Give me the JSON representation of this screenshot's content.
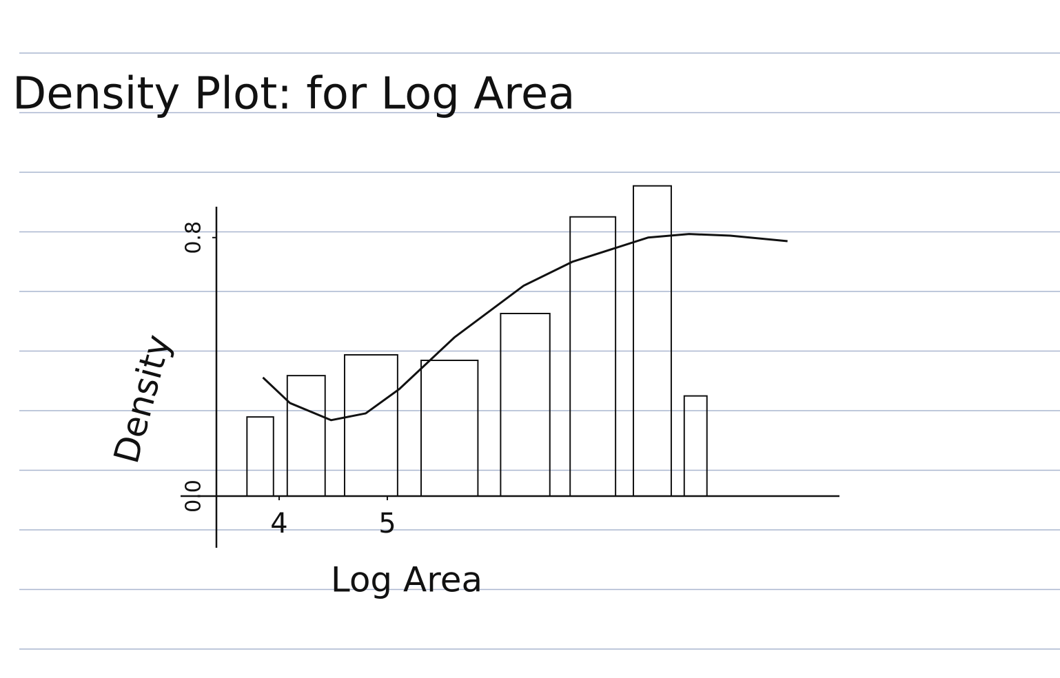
{
  "chart_data": {
    "type": "histogram",
    "title": "Density Plot: for Log Area",
    "x_label": "Log Area",
    "y_label": "Density",
    "bins": [
      3.65,
      4.0,
      4.5,
      5.2,
      5.95,
      6.6,
      7.2,
      7.7,
      8.0
    ],
    "values": [
      0.245,
      0.373,
      0.437,
      0.42,
      0.565,
      0.864,
      0.96,
      0.31
    ],
    "density": {
      "x": [
        3.85,
        4.1,
        4.48,
        4.8,
        5.11,
        5.62,
        6.26,
        6.71,
        7.41,
        7.79,
        8.17,
        8.7
      ],
      "y": [
        0.367,
        0.288,
        0.235,
        0.256,
        0.331,
        0.491,
        0.651,
        0.725,
        0.8,
        0.811,
        0.806,
        0.789
      ]
    },
    "color": "#111111",
    "xlim": [
      3.42,
      9.18
    ],
    "xticks": [
      4,
      5
    ],
    "ylim": [
      0,
      1.0
    ],
    "yticks": [
      {
        "value": 0,
        "label": "0.0"
      },
      0.8
    ]
  }
}
